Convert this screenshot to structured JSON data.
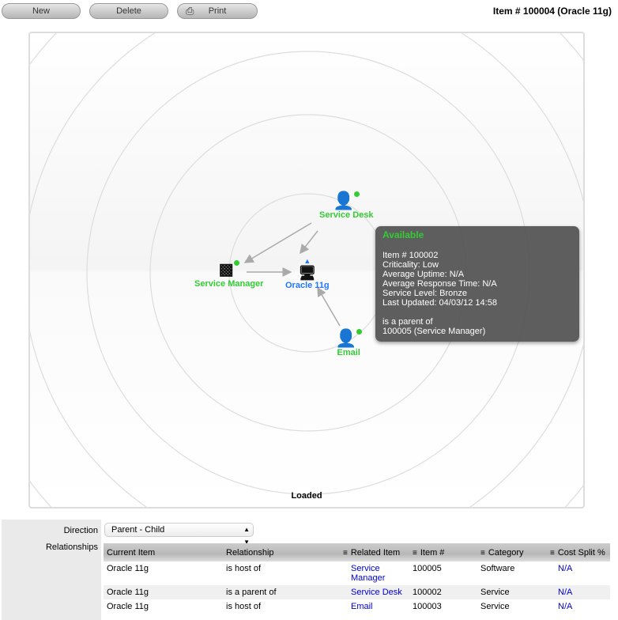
{
  "toolbar": {
    "new": "New",
    "delete": "Delete",
    "print": "Print"
  },
  "title": "Item # 100004 (Oracle 11g)",
  "graph": {
    "nodes": {
      "service_desk": "Service Desk",
      "service_manager": "Service Manager",
      "oracle": "Oracle 11g",
      "email": "Email"
    },
    "status_color": "#33cc33",
    "selected_color": "#2277ff",
    "tooltip": {
      "status": "Available",
      "lines": [
        "Item # 100002",
        "Criticality: Low",
        "Average Uptime: N/A",
        "Average Response Time: N/A",
        "Service Level: Bronze",
        "Last Updated: 04/03/12 14:58"
      ],
      "relation": "is a parent of",
      "related": "100005 (Service Manager)"
    },
    "status": "Loaded"
  },
  "form": {
    "direction_label": "Direction",
    "direction_value": "Parent - Child",
    "relationships_label": "Relationships"
  },
  "table": {
    "headers": [
      "Current Item",
      "Relationship",
      "Related Item",
      "Item #",
      "Category",
      "Cost Split %"
    ],
    "rows": [
      [
        "Oracle 11g",
        "is host of",
        "Service Manager",
        "100005",
        "Software",
        "N/A"
      ],
      [
        "Oracle 11g",
        "is a parent of",
        "Service Desk",
        "100002",
        "Service",
        "N/A"
      ],
      [
        "Oracle 11g",
        "is host of",
        "Email",
        "100003",
        "Service",
        "N/A"
      ]
    ]
  }
}
